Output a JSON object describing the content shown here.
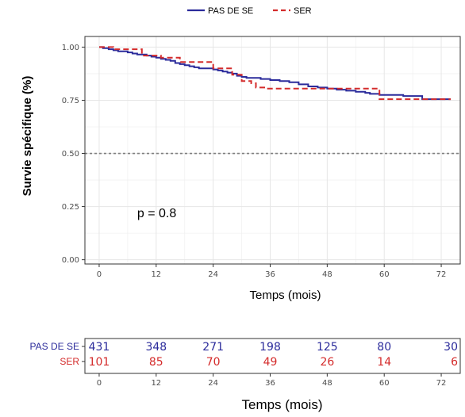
{
  "chart_data": {
    "type": "line",
    "subtype": "kaplan-meier",
    "title": "",
    "xlabel": "Temps (mois)",
    "ylabel": "Survie spécifique (%)",
    "xlim": [
      -3,
      76
    ],
    "ylim": [
      -0.02,
      1.05
    ],
    "x_ticks": [
      0,
      12,
      24,
      36,
      48,
      60,
      72
    ],
    "x_tick_labels": [
      "0",
      "12",
      "24",
      "36",
      "48",
      "60",
      "72"
    ],
    "y_ticks": [
      0.0,
      0.25,
      0.5,
      0.75,
      1.0
    ],
    "y_tick_labels": [
      "0.00",
      "0.25",
      "0.50",
      "0.75",
      "1.00"
    ],
    "grid": true,
    "legend_position": "top",
    "reference_line": {
      "y": 0.5,
      "style": "dotted",
      "color": "#7f7f7f"
    },
    "annotation": "p = 0.8",
    "annotation_pos": {
      "x": 8,
      "y": 0.2
    },
    "series": [
      {
        "name": "PAS DE SE",
        "color": "#2b2b9b",
        "dash": "solid",
        "x": [
          0,
          0.8,
          2,
          3,
          4,
          6,
          7,
          8,
          10,
          11,
          12,
          13,
          14,
          15,
          16,
          17,
          18,
          19,
          20,
          21,
          22,
          24,
          25,
          26,
          27,
          28,
          29,
          30,
          31,
          34,
          36,
          38,
          40,
          42,
          44,
          46,
          48,
          50,
          52,
          54,
          56,
          57,
          58,
          59,
          60,
          62,
          64,
          66,
          68,
          70,
          74
        ],
        "y": [
          1.0,
          0.995,
          0.99,
          0.985,
          0.98,
          0.975,
          0.97,
          0.965,
          0.96,
          0.955,
          0.95,
          0.945,
          0.94,
          0.935,
          0.925,
          0.92,
          0.915,
          0.91,
          0.905,
          0.9,
          0.9,
          0.895,
          0.89,
          0.885,
          0.88,
          0.875,
          0.865,
          0.86,
          0.855,
          0.85,
          0.845,
          0.84,
          0.835,
          0.825,
          0.815,
          0.81,
          0.805,
          0.8,
          0.795,
          0.79,
          0.785,
          0.78,
          0.78,
          0.775,
          0.775,
          0.775,
          0.77,
          0.77,
          0.755,
          0.755,
          0.755
        ]
      },
      {
        "name": "SER",
        "color": "#d42b2b",
        "dash": "dashed",
        "x": [
          0,
          3,
          9,
          13,
          17,
          22,
          24,
          28,
          30,
          32,
          33,
          35,
          41,
          45,
          48,
          50,
          54,
          58,
          59,
          62,
          74
        ],
        "y": [
          1.0,
          0.99,
          0.96,
          0.95,
          0.93,
          0.93,
          0.9,
          0.87,
          0.84,
          0.83,
          0.81,
          0.805,
          0.805,
          0.805,
          0.805,
          0.805,
          0.805,
          0.805,
          0.755,
          0.755,
          0.755
        ]
      }
    ]
  },
  "risk_table": {
    "xlabel": "Temps (mois)",
    "times": [
      0,
      12,
      24,
      36,
      48,
      60,
      72
    ],
    "time_labels": [
      "0",
      "12",
      "24",
      "36",
      "48",
      "60",
      "72"
    ],
    "rows": [
      {
        "label": "PAS DE SE",
        "color": "#2b2b9b",
        "values": [
          "431",
          "348",
          "271",
          "198",
          "125",
          "80",
          "30"
        ]
      },
      {
        "label": "SER",
        "color": "#d42b2b",
        "values": [
          "101",
          "85",
          "70",
          "49",
          "26",
          "14",
          "6"
        ]
      }
    ]
  }
}
